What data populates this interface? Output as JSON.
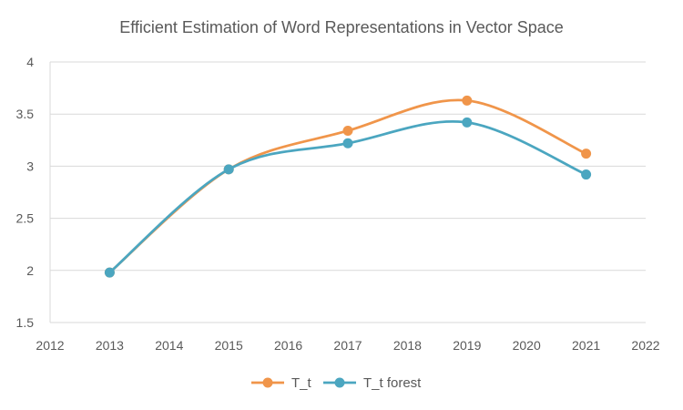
{
  "chart_data": {
    "type": "line",
    "title": "Efficient Estimation of Word Representations in Vector Space",
    "xlabel": "",
    "ylabel": "",
    "xlim": [
      2012,
      2022
    ],
    "ylim": [
      1.5,
      4
    ],
    "x_ticks": [
      "2012",
      "2013",
      "2014",
      "2015",
      "2016",
      "2017",
      "2018",
      "2019",
      "2020",
      "2021",
      "2022"
    ],
    "y_ticks": [
      "1.5",
      "2",
      "2.5",
      "3",
      "3.5",
      "4"
    ],
    "grid": "horizontal",
    "legend_position": "bottom",
    "smooth": true,
    "series": [
      {
        "name": "T_t",
        "color": "#F0954A",
        "points": [
          [
            2013,
            1.98
          ],
          [
            2015,
            2.97
          ],
          [
            2017,
            3.34
          ],
          [
            2019,
            3.63
          ],
          [
            2021,
            3.12
          ]
        ]
      },
      {
        "name": "T_t forest",
        "color": "#4BA6C0",
        "points": [
          [
            2013,
            1.98
          ],
          [
            2015,
            2.97
          ],
          [
            2017,
            3.22
          ],
          [
            2019,
            3.42
          ],
          [
            2021,
            2.92
          ]
        ]
      }
    ]
  }
}
